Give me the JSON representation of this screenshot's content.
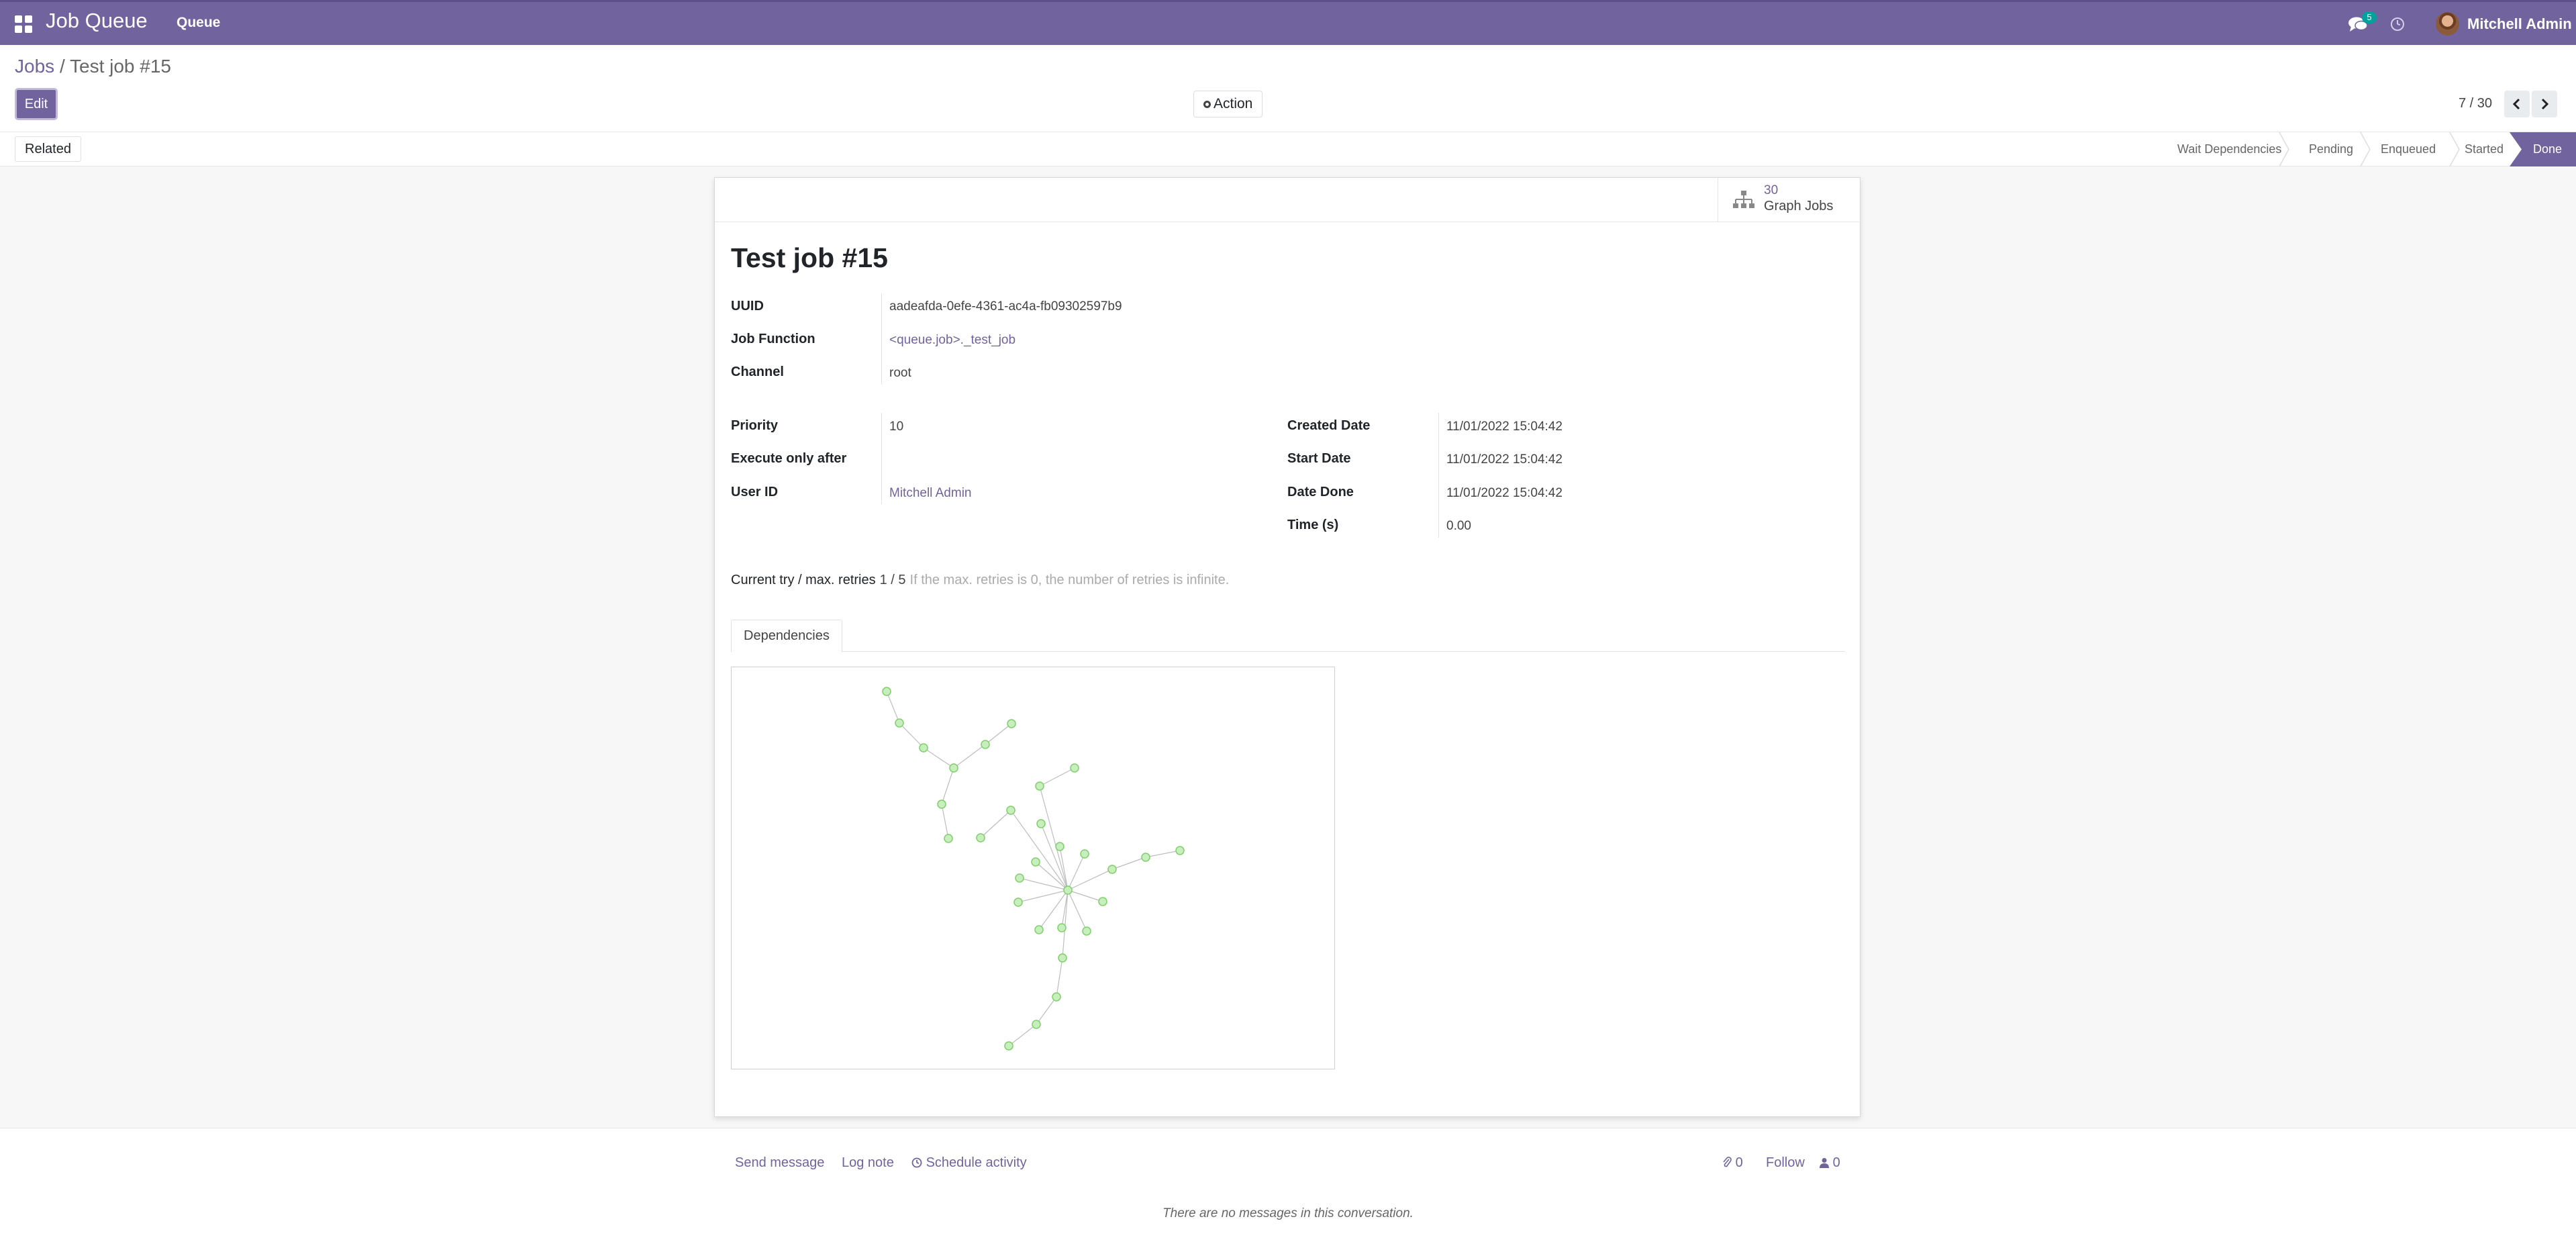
{
  "navbar": {
    "app_title": "Job Queue",
    "menu_queue": "Queue",
    "messages_count": "5",
    "user_name": "Mitchell Admin",
    "accent_color": "#71639e"
  },
  "breadcrumb": {
    "parent": "Jobs",
    "separator": "/",
    "current": "Test job #15"
  },
  "toolbar": {
    "edit_label": "Edit",
    "action_label": "Action",
    "pager_value": "7 / 30"
  },
  "statusbar": {
    "related_label": "Related",
    "stages": [
      "Wait Dependencies",
      "Pending",
      "Enqueued",
      "Started",
      "Done"
    ],
    "current_stage": "Done"
  },
  "sheet": {
    "graph_jobs_count": "30",
    "graph_jobs_label": "Graph Jobs",
    "title": "Test job #15",
    "fields_top": [
      {
        "label": "UUID",
        "value": "aadeafda-0efe-4361-ac4a-fb09302597b9"
      },
      {
        "label": "Job Function",
        "value": "<queue.job>._test_job"
      },
      {
        "label": "Channel",
        "value": "root"
      }
    ],
    "fields_left": [
      {
        "label": "Priority",
        "value": "10"
      },
      {
        "label": "Execute only after",
        "value": ""
      },
      {
        "label": "User ID",
        "value": "Mitchell Admin"
      }
    ],
    "fields_right": [
      {
        "label": "Created Date",
        "value": "11/01/2022 15:04:42"
      },
      {
        "label": "Start Date",
        "value": "11/01/2022 15:04:42"
      },
      {
        "label": "Date Done",
        "value": "11/01/2022 15:04:42"
      },
      {
        "label": "Time (s)",
        "value": "0.00"
      }
    ],
    "retries_label": "Current try / max. retries",
    "retries_value": "1 / 5",
    "retries_help": "If the max. retries is 0, the number of retries is infinite.",
    "tab_label": "Dependencies"
  },
  "chatter": {
    "send_message": "Send message",
    "log_note": "Log note",
    "schedule_activity": "Schedule activity",
    "attachments_count": "0",
    "follow_label": "Follow",
    "followers_count": "0",
    "empty_message": "There are no messages in this conversation."
  }
}
